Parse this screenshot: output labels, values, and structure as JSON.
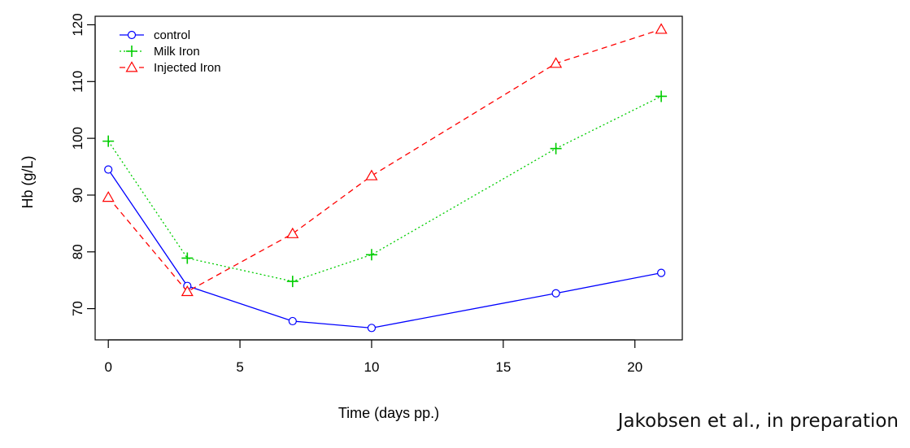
{
  "chart_data": {
    "type": "line",
    "title": "",
    "xlabel": "Time (days pp.)",
    "ylabel": "Hb (g/L)",
    "xlim": [
      -0.5,
      21.8
    ],
    "ylim": [
      64.5,
      121.5
    ],
    "xticks": [
      0,
      5,
      10,
      15,
      20
    ],
    "yticks": [
      70,
      80,
      90,
      100,
      110,
      120
    ],
    "x": [
      0,
      3,
      7,
      10,
      17,
      21
    ],
    "legend_position": "top-left",
    "series": [
      {
        "name": "control",
        "values": [
          94.5,
          74,
          67.8,
          66.6,
          72.7,
          76.3
        ],
        "color": "#0000ff",
        "line_style": "solid",
        "marker": "circle"
      },
      {
        "name": "Milk Iron",
        "values": [
          99.5,
          78.9,
          74.8,
          79.5,
          98.2,
          107.4
        ],
        "color": "#00cd00",
        "line_style": "dotted",
        "marker": "plus"
      },
      {
        "name": "Injected Iron",
        "values": [
          89.6,
          73,
          83.2,
          93.4,
          113.2,
          119.2
        ],
        "color": "#ff0000",
        "line_style": "dashed",
        "marker": "triangle"
      }
    ]
  },
  "citation": "Jakobsen et al., in preparation"
}
